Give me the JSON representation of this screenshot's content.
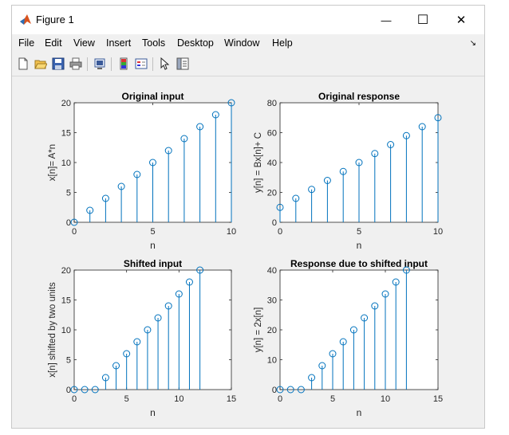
{
  "window": {
    "title": "Figure 1",
    "controls": {
      "minimize": "—",
      "maximize": "☐",
      "close": "✕"
    },
    "icon": "matlab-logo-icon"
  },
  "menubar": {
    "items": [
      "File",
      "Edit",
      "View",
      "Insert",
      "Tools",
      "Desktop",
      "Window",
      "Help"
    ],
    "dock_icon": "dock-arrow-icon"
  },
  "toolbar": {
    "icons": [
      "new-figure-icon",
      "open-file-icon",
      "save-icon",
      "print-icon",
      "link-plot-icon",
      "colorbar-icon",
      "legend-icon",
      "edit-plot-arrow-icon",
      "property-inspector-icon"
    ]
  },
  "colors": {
    "stem": "#0072BD",
    "window_bg": "#f0f0f0",
    "axes_bg": "#ffffff"
  },
  "chart_data": [
    {
      "type": "stem",
      "title": "Original input",
      "xlabel": "n",
      "ylabel": "x[n]= A*n",
      "xlim": [
        0,
        10
      ],
      "ylim": [
        0,
        20
      ],
      "xticks": [
        0,
        5,
        10
      ],
      "yticks": [
        0,
        5,
        10,
        15,
        20
      ],
      "x": [
        0,
        1,
        2,
        3,
        4,
        5,
        6,
        7,
        8,
        9,
        10
      ],
      "y": [
        0,
        2,
        4,
        6,
        8,
        10,
        12,
        14,
        16,
        18,
        20
      ]
    },
    {
      "type": "stem",
      "title": "Original response",
      "xlabel": "n",
      "ylabel": "y[n] = Bx[n]+ C",
      "xlim": [
        0,
        10
      ],
      "ylim": [
        0,
        80
      ],
      "xticks": [
        0,
        5,
        10
      ],
      "yticks": [
        0,
        20,
        40,
        60,
        80
      ],
      "x": [
        0,
        1,
        2,
        3,
        4,
        5,
        6,
        7,
        8,
        9,
        10
      ],
      "y": [
        10,
        16,
        22,
        28,
        34,
        40,
        46,
        52,
        58,
        64,
        70
      ]
    },
    {
      "type": "stem",
      "title": "Shifted input",
      "xlabel": "n",
      "ylabel": "x[n] shifted by two units",
      "xlim": [
        0,
        15
      ],
      "ylim": [
        0,
        20
      ],
      "xticks": [
        0,
        5,
        10,
        15
      ],
      "yticks": [
        0,
        5,
        10,
        15,
        20
      ],
      "x": [
        0,
        1,
        2,
        3,
        4,
        5,
        6,
        7,
        8,
        9,
        10,
        11,
        12
      ],
      "y": [
        0,
        0,
        0,
        2,
        4,
        6,
        8,
        10,
        12,
        14,
        16,
        18,
        20
      ]
    },
    {
      "type": "stem",
      "title": "Response due to shifted input",
      "xlabel": "n",
      "ylabel": "y[n] = 2x[n]",
      "xlim": [
        0,
        15
      ],
      "ylim": [
        0,
        40
      ],
      "xticks": [
        0,
        5,
        10,
        15
      ],
      "yticks": [
        0,
        10,
        20,
        30,
        40
      ],
      "x": [
        0,
        1,
        2,
        3,
        4,
        5,
        6,
        7,
        8,
        9,
        10,
        11,
        12
      ],
      "y": [
        0,
        0,
        0,
        4,
        8,
        12,
        16,
        20,
        24,
        28,
        32,
        36,
        40
      ]
    }
  ]
}
